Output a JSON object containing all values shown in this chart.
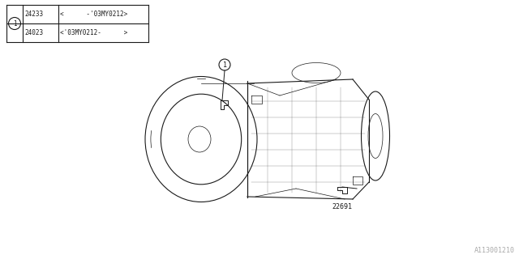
{
  "bg_color": "#ffffff",
  "line_color": "#1a1a1a",
  "fig_width": 6.4,
  "fig_height": 3.2,
  "dpi": 100,
  "title_diagram_id": "A113001210",
  "part1_num": "24233",
  "part1_range": "<      -'03MY0212>",
  "part2_num": "24023",
  "part2_range": "<'03MY0212-      >",
  "callout1": "1",
  "label_22691": "22691"
}
